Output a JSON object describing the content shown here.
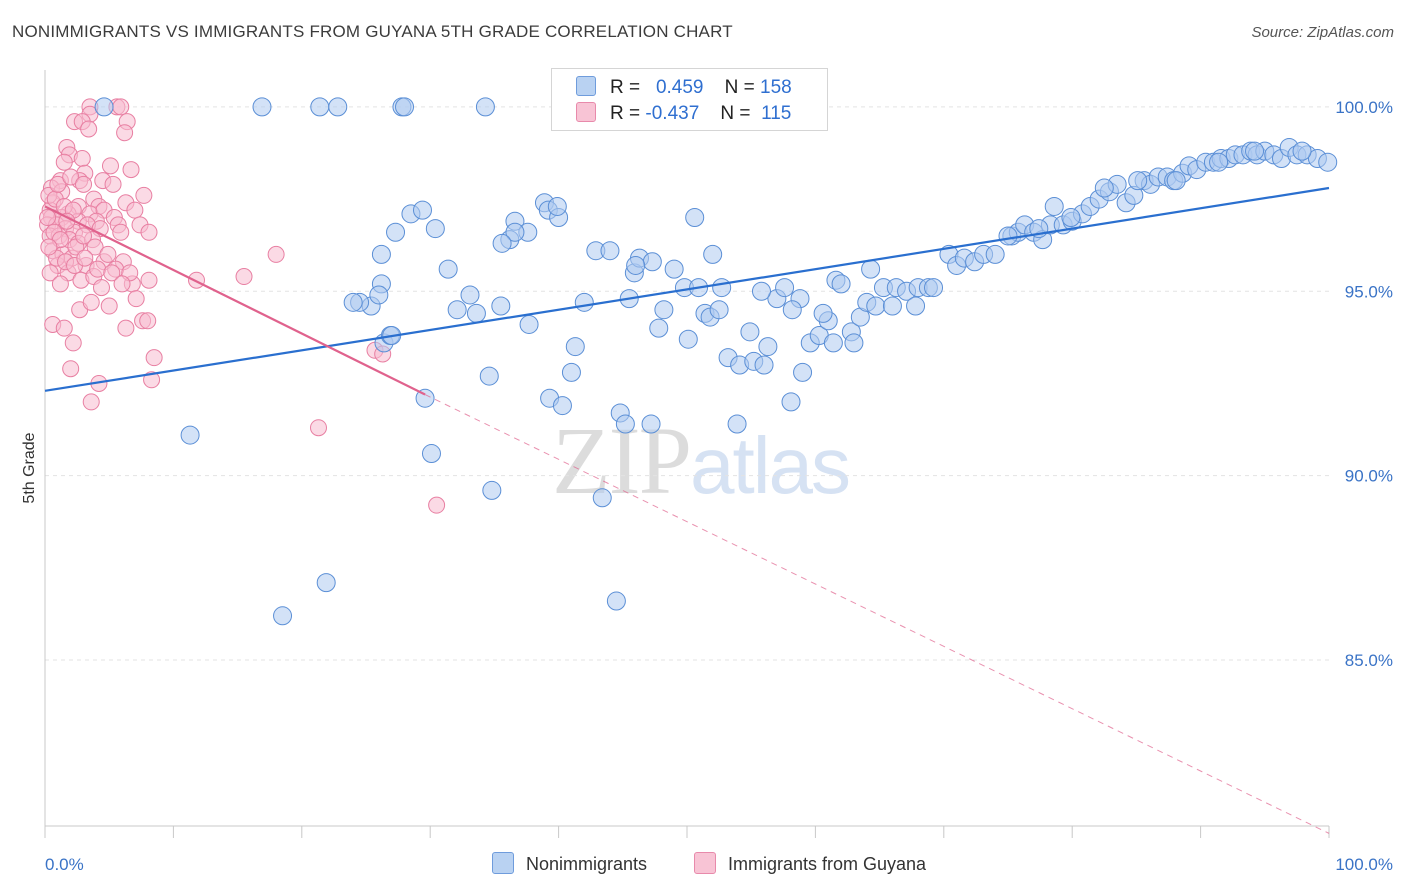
{
  "header": {
    "title": "NONIMMIGRANTS VS IMMIGRANTS FROM GUYANA 5TH GRADE CORRELATION CHART",
    "source": "Source: ZipAtlas.com"
  },
  "legend": {
    "rows": [
      {
        "r_label": "R =",
        "r_value": "0.459",
        "n_label": "N =",
        "n_value": "158"
      },
      {
        "r_label": "R =",
        "r_value": "-0.437",
        "n_label": "N =",
        "n_value": "115"
      }
    ],
    "bottom": [
      "Nonimmigrants",
      "Immigrants from Guyana"
    ]
  },
  "watermark": {
    "part1": "ZIP",
    "part2": "atlas"
  },
  "colors": {
    "blue_fill": "#aecbf0",
    "blue_stroke": "#5b8fd6",
    "blue_line": "#2a6fcf",
    "pink_fill": "#f7bcd0",
    "pink_stroke": "#e87fa2",
    "pink_line": "#e0628d"
  },
  "chart_data": {
    "type": "scatter",
    "title": "NONIMMIGRANTS VS IMMIGRANTS FROM GUYANA 5TH GRADE CORRELATION CHART",
    "xlabel": "",
    "ylabel": "5th Grade",
    "x_tick_labels": [
      "0.0%",
      "100.0%"
    ],
    "y_tick_labels": [
      "100.0%",
      "95.0%",
      "90.0%",
      "85.0%"
    ],
    "y_ticks": [
      100,
      95,
      90,
      85
    ],
    "xlim": [
      0,
      100
    ],
    "ylim": [
      80.5,
      101.0
    ],
    "grid": true,
    "legend_placement": "top-center",
    "series": [
      {
        "name": "Nonimmigrants",
        "color": "#5b8fd6",
        "trend": {
          "x": [
            0,
            100
          ],
          "y": [
            92.3,
            97.8
          ]
        },
        "points": [
          [
            4.6,
            100
          ],
          [
            16.9,
            100
          ],
          [
            21.4,
            100
          ],
          [
            22.8,
            100
          ],
          [
            27.8,
            100
          ],
          [
            28.0,
            100
          ],
          [
            34.3,
            100
          ],
          [
            11.3,
            91.1
          ],
          [
            18.5,
            86.2
          ],
          [
            21.9,
            87.1
          ],
          [
            26.2,
            95.2
          ],
          [
            25.4,
            94.6
          ],
          [
            26.0,
            94.9
          ],
          [
            24.5,
            94.7
          ],
          [
            26.4,
            93.6
          ],
          [
            26.9,
            93.8
          ],
          [
            26.2,
            96.0
          ],
          [
            27.3,
            96.6
          ],
          [
            28.5,
            97.1
          ],
          [
            29.4,
            97.2
          ],
          [
            30.4,
            96.7
          ],
          [
            29.6,
            92.1
          ],
          [
            30.1,
            90.6
          ],
          [
            31.4,
            95.6
          ],
          [
            33.1,
            94.9
          ],
          [
            33.6,
            94.4
          ],
          [
            34.6,
            92.7
          ],
          [
            34.8,
            89.6
          ],
          [
            35.5,
            94.6
          ],
          [
            36.2,
            96.4
          ],
          [
            36.6,
            96.9
          ],
          [
            37.6,
            96.6
          ],
          [
            37.7,
            94.1
          ],
          [
            38.9,
            97.4
          ],
          [
            39.2,
            97.2
          ],
          [
            40.0,
            97.0
          ],
          [
            39.3,
            92.1
          ],
          [
            40.3,
            91.9
          ],
          [
            41.0,
            92.8
          ],
          [
            41.3,
            93.5
          ],
          [
            42.0,
            94.7
          ],
          [
            42.9,
            96.1
          ],
          [
            43.4,
            89.4
          ],
          [
            44.5,
            86.6
          ],
          [
            44.8,
            91.7
          ],
          [
            45.2,
            91.4
          ],
          [
            45.5,
            94.8
          ],
          [
            45.9,
            95.5
          ],
          [
            46.3,
            95.9
          ],
          [
            47.3,
            95.8
          ],
          [
            47.2,
            91.4
          ],
          [
            47.8,
            94.0
          ],
          [
            48.2,
            94.5
          ],
          [
            49.0,
            95.6
          ],
          [
            49.8,
            95.1
          ],
          [
            50.1,
            93.7
          ],
          [
            50.6,
            97.0
          ],
          [
            51.4,
            94.4
          ],
          [
            51.8,
            94.3
          ],
          [
            52.5,
            94.5
          ],
          [
            52.7,
            95.1
          ],
          [
            53.2,
            93.2
          ],
          [
            53.9,
            91.4
          ],
          [
            54.1,
            93.0
          ],
          [
            54.9,
            93.9
          ],
          [
            55.2,
            93.1
          ],
          [
            56.0,
            93.0
          ],
          [
            56.3,
            93.5
          ],
          [
            57.0,
            94.8
          ],
          [
            57.6,
            95.1
          ],
          [
            58.1,
            92.0
          ],
          [
            58.8,
            94.8
          ],
          [
            59.0,
            92.8
          ],
          [
            59.6,
            93.6
          ],
          [
            60.3,
            93.8
          ],
          [
            61.0,
            94.2
          ],
          [
            61.4,
            93.6
          ],
          [
            61.6,
            95.3
          ],
          [
            62.0,
            95.2
          ],
          [
            62.8,
            93.9
          ],
          [
            63.5,
            94.3
          ],
          [
            64.0,
            94.7
          ],
          [
            64.3,
            95.6
          ],
          [
            64.7,
            94.6
          ],
          [
            65.3,
            95.1
          ],
          [
            66.0,
            94.6
          ],
          [
            66.3,
            95.1
          ],
          [
            67.1,
            95.0
          ],
          [
            67.8,
            94.6
          ],
          [
            68.0,
            95.1
          ],
          [
            68.8,
            95.1
          ],
          [
            69.2,
            95.1
          ],
          [
            70.4,
            96.0
          ],
          [
            71.0,
            95.7
          ],
          [
            71.6,
            95.9
          ],
          [
            72.4,
            95.8
          ],
          [
            73.1,
            96.0
          ],
          [
            74.0,
            96.0
          ],
          [
            75.3,
            96.5
          ],
          [
            75.8,
            96.6
          ],
          [
            76.3,
            96.8
          ],
          [
            77.0,
            96.6
          ],
          [
            77.7,
            96.4
          ],
          [
            78.3,
            96.8
          ],
          [
            78.6,
            97.3
          ],
          [
            79.3,
            96.8
          ],
          [
            80.0,
            96.9
          ],
          [
            80.8,
            97.1
          ],
          [
            81.4,
            97.3
          ],
          [
            82.1,
            97.5
          ],
          [
            82.9,
            97.7
          ],
          [
            83.5,
            97.9
          ],
          [
            84.2,
            97.4
          ],
          [
            84.8,
            97.6
          ],
          [
            85.6,
            98.0
          ],
          [
            86.1,
            97.9
          ],
          [
            86.7,
            98.1
          ],
          [
            87.4,
            98.1
          ],
          [
            87.9,
            98.0
          ],
          [
            88.6,
            98.2
          ],
          [
            89.1,
            98.4
          ],
          [
            89.7,
            98.3
          ],
          [
            90.4,
            98.5
          ],
          [
            91.0,
            98.5
          ],
          [
            91.6,
            98.6
          ],
          [
            92.2,
            98.6
          ],
          [
            92.7,
            98.7
          ],
          [
            93.3,
            98.7
          ],
          [
            93.9,
            98.8
          ],
          [
            94.4,
            98.7
          ],
          [
            95.0,
            98.8
          ],
          [
            95.7,
            98.7
          ],
          [
            96.3,
            98.6
          ],
          [
            96.9,
            98.9
          ],
          [
            97.5,
            98.7
          ],
          [
            98.3,
            98.7
          ],
          [
            99.1,
            98.6
          ],
          [
            99.9,
            98.5
          ],
          [
            97.9,
            98.8
          ],
          [
            94.2,
            98.8
          ],
          [
            91.4,
            98.5
          ],
          [
            88.1,
            98.0
          ],
          [
            85.1,
            98.0
          ],
          [
            82.5,
            97.8
          ],
          [
            79.9,
            97.0
          ],
          [
            77.4,
            96.7
          ],
          [
            75.0,
            96.5
          ],
          [
            36.6,
            96.6
          ],
          [
            35.6,
            96.3
          ],
          [
            44.0,
            96.1
          ],
          [
            50.9,
            95.1
          ],
          [
            55.8,
            95.0
          ],
          [
            39.9,
            97.3
          ],
          [
            46.0,
            95.7
          ],
          [
            52.0,
            96.0
          ],
          [
            58.2,
            94.5
          ],
          [
            60.6,
            94.4
          ],
          [
            63.0,
            93.6
          ],
          [
            32.1,
            94.5
          ],
          [
            24.0,
            94.7
          ],
          [
            27.0,
            93.8
          ]
        ]
      },
      {
        "name": "Immigrants from Guyana",
        "color": "#e87fa2",
        "trend": {
          "x": [
            0,
            29.6
          ],
          "y": [
            97.3,
            92.2
          ]
        },
        "trend_extension": {
          "x": [
            29.6,
            100
          ],
          "y": [
            92.2,
            80.3
          ]
        },
        "points": [
          [
            3.5,
            100
          ],
          [
            5.6,
            100
          ],
          [
            5.9,
            100
          ],
          [
            3.5,
            99.8
          ],
          [
            2.3,
            99.6
          ],
          [
            2.9,
            99.6
          ],
          [
            3.4,
            99.4
          ],
          [
            6.4,
            99.6
          ],
          [
            6.2,
            99.3
          ],
          [
            1.7,
            98.9
          ],
          [
            1.9,
            98.7
          ],
          [
            2.9,
            98.6
          ],
          [
            1.5,
            98.5
          ],
          [
            5.1,
            98.4
          ],
          [
            6.7,
            98.3
          ],
          [
            3.1,
            98.2
          ],
          [
            1.2,
            98.0
          ],
          [
            2.7,
            98.0
          ],
          [
            4.5,
            98.0
          ],
          [
            5.3,
            97.9
          ],
          [
            0.5,
            97.8
          ],
          [
            1.3,
            97.7
          ],
          [
            7.7,
            97.6
          ],
          [
            3.8,
            97.5
          ],
          [
            0.6,
            97.4
          ],
          [
            2.6,
            97.3
          ],
          [
            4.2,
            97.3
          ],
          [
            6.3,
            97.4
          ],
          [
            0.4,
            97.2
          ],
          [
            1.8,
            97.1
          ],
          [
            3.5,
            97.1
          ],
          [
            4.6,
            97.2
          ],
          [
            7.0,
            97.2
          ],
          [
            0.5,
            97.0
          ],
          [
            1.3,
            97.0
          ],
          [
            2.6,
            96.9
          ],
          [
            4.0,
            96.9
          ],
          [
            5.4,
            97.0
          ],
          [
            0.2,
            96.8
          ],
          [
            0.9,
            96.8
          ],
          [
            1.6,
            96.7
          ],
          [
            2.3,
            96.6
          ],
          [
            3.3,
            96.8
          ],
          [
            4.3,
            96.7
          ],
          [
            5.7,
            96.8
          ],
          [
            0.4,
            96.5
          ],
          [
            1.1,
            96.5
          ],
          [
            1.9,
            96.4
          ],
          [
            2.6,
            96.3
          ],
          [
            3.7,
            96.4
          ],
          [
            5.9,
            96.6
          ],
          [
            7.4,
            96.8
          ],
          [
            8.1,
            96.6
          ],
          [
            0.6,
            96.1
          ],
          [
            1.4,
            96.0
          ],
          [
            2.1,
            95.9
          ],
          [
            3.2,
            95.7
          ],
          [
            4.6,
            95.8
          ],
          [
            6.1,
            95.8
          ],
          [
            1.0,
            95.7
          ],
          [
            1.8,
            95.5
          ],
          [
            2.8,
            95.3
          ],
          [
            3.8,
            95.4
          ],
          [
            0.4,
            95.5
          ],
          [
            1.2,
            95.2
          ],
          [
            4.4,
            95.1
          ],
          [
            6.8,
            95.2
          ],
          [
            8.1,
            95.3
          ],
          [
            11.8,
            95.3
          ],
          [
            15.5,
            95.4
          ],
          [
            18.0,
            96.0
          ],
          [
            7.1,
            94.8
          ],
          [
            0.6,
            94.1
          ],
          [
            1.5,
            94.0
          ],
          [
            2.7,
            94.5
          ],
          [
            3.6,
            94.7
          ],
          [
            5.0,
            94.6
          ],
          [
            6.3,
            94.0
          ],
          [
            7.6,
            94.2
          ],
          [
            8.0,
            94.2
          ],
          [
            2.2,
            93.6
          ],
          [
            8.5,
            93.2
          ],
          [
            8.3,
            92.6
          ],
          [
            2.0,
            92.9
          ],
          [
            3.6,
            92.0
          ],
          [
            4.2,
            92.5
          ],
          [
            21.3,
            91.3
          ],
          [
            25.7,
            93.4
          ],
          [
            26.3,
            93.3
          ],
          [
            30.5,
            89.2
          ],
          [
            0.3,
            97.6
          ],
          [
            0.8,
            97.5
          ],
          [
            1.5,
            97.3
          ],
          [
            2.2,
            97.2
          ],
          [
            0.2,
            97.0
          ],
          [
            0.7,
            96.6
          ],
          [
            1.2,
            96.4
          ],
          [
            1.7,
            96.9
          ],
          [
            2.4,
            96.2
          ],
          [
            3.0,
            96.5
          ],
          [
            3.9,
            96.2
          ],
          [
            4.9,
            96.0
          ],
          [
            5.5,
            95.6
          ],
          [
            6.6,
            95.5
          ],
          [
            0.9,
            95.9
          ],
          [
            1.6,
            95.8
          ],
          [
            2.3,
            95.7
          ],
          [
            3.1,
            95.9
          ],
          [
            4.1,
            95.6
          ],
          [
            5.2,
            95.5
          ],
          [
            6.0,
            95.2
          ],
          [
            0.3,
            96.2
          ],
          [
            1.0,
            97.9
          ],
          [
            2.0,
            98.1
          ],
          [
            3.0,
            97.9
          ]
        ]
      }
    ]
  }
}
